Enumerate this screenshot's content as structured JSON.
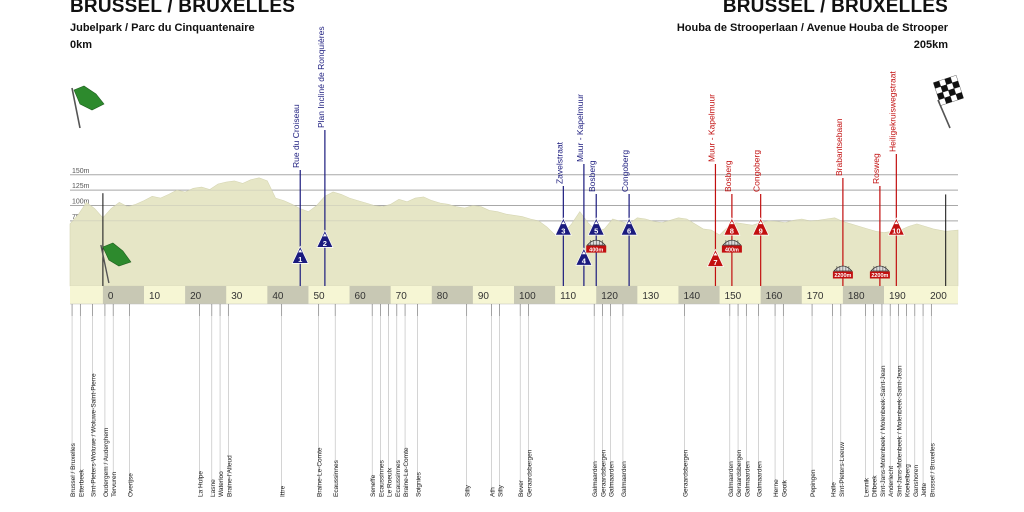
{
  "header": {
    "start_title": "BRUSSEL / BRUXELLES",
    "start_location": "Jubelpark / Parc du Cinquantenaire",
    "start_km": "0km",
    "finish_title": "BRUSSEL / BRUXELLES",
    "finish_location": "Houba de Strooperlaan / Avenue Houba de Strooper",
    "finish_km": "205km"
  },
  "colors": {
    "terrain": "#e6e6c6",
    "band_light": "#f6f6d4",
    "band_dark": "#c8c8b4",
    "climb_blue": "#1b1b7e",
    "climb_red": "#c20f0f",
    "grid": "#a8a8a8",
    "flag_green": "#2d8a2d"
  },
  "icons": {
    "start_flag": "green-flag-icon",
    "finish_flag": "checkered-flag-icon",
    "cobbles": "cobblestone-icon"
  },
  "chart_data": {
    "type": "area",
    "title": "",
    "xlabel": "",
    "ylabel": "",
    "xlim": [
      -8,
      208
    ],
    "ylim": [
      0,
      155
    ],
    "x_ticks": [
      0,
      10,
      20,
      30,
      40,
      50,
      60,
      70,
      80,
      90,
      100,
      110,
      120,
      130,
      140,
      150,
      160,
      170,
      180,
      190,
      200
    ],
    "x_tick_labels": [
      "0",
      "10",
      "20",
      "30",
      "40",
      "50",
      "60",
      "70",
      "80",
      "90",
      "100",
      "110",
      "120",
      "130",
      "140",
      "150",
      "160",
      "170",
      "180",
      "190",
      "200"
    ],
    "y_gridlines": [
      150,
      125,
      100,
      75
    ],
    "y_tick_labels": [
      "150m",
      "125m",
      "100m",
      "75m"
    ],
    "profile": {
      "x": [
        -8,
        -6,
        -4,
        -2,
        0,
        2,
        4,
        6,
        8,
        10,
        12,
        14,
        16,
        18,
        20,
        22,
        24,
        26,
        28,
        30,
        32,
        34,
        36,
        38,
        40,
        42,
        44,
        46,
        48,
        50,
        52,
        54,
        56,
        58,
        60,
        62,
        64,
        66,
        68,
        70,
        72,
        74,
        76,
        78,
        80,
        82,
        84,
        86,
        88,
        90,
        92,
        94,
        96,
        98,
        100,
        102,
        104,
        106,
        108,
        110,
        112,
        114,
        116,
        118,
        120,
        122,
        124,
        126,
        128,
        130,
        132,
        134,
        136,
        138,
        140,
        142,
        144,
        146,
        148,
        150,
        152,
        154,
        156,
        158,
        160,
        162,
        164,
        166,
        168,
        170,
        172,
        174,
        176,
        178,
        180,
        182,
        184,
        186,
        188,
        190,
        192,
        194,
        196,
        198,
        200,
        202,
        205,
        208
      ],
      "y": [
        70,
        85,
        105,
        95,
        80,
        95,
        105,
        98,
        102,
        108,
        115,
        112,
        118,
        125,
        122,
        128,
        130,
        126,
        135,
        138,
        140,
        136,
        142,
        145,
        140,
        112,
        108,
        102,
        95,
        90,
        100,
        115,
        122,
        118,
        112,
        108,
        104,
        100,
        98,
        102,
        110,
        106,
        112,
        114,
        108,
        104,
        102,
        98,
        96,
        100,
        98,
        92,
        90,
        86,
        84,
        82,
        78,
        75,
        65,
        52,
        55,
        70,
        90,
        72,
        58,
        62,
        78,
        74,
        70,
        80,
        78,
        74,
        72,
        76,
        80,
        78,
        70,
        62,
        60,
        52,
        65,
        72,
        70,
        68,
        72,
        75,
        74,
        72,
        76,
        78,
        75,
        76,
        78,
        80,
        74,
        70,
        66,
        62,
        58,
        56,
        58,
        60,
        66,
        70,
        66,
        62,
        58,
        60
      ]
    },
    "climbs": [
      {
        "num": "1",
        "name": "Rue du Croiseau",
        "km": 48,
        "color": "blue",
        "tri_alt": 14,
        "label_top": 74,
        "cobbles": ""
      },
      {
        "num": "2",
        "name": "Plan Incliné de Ronquières",
        "km": 54,
        "color": "blue",
        "tri_alt": 40,
        "label_top": 34,
        "cobbles": ""
      },
      {
        "num": "3",
        "name": "Zavelstraat",
        "km": 112,
        "color": "blue",
        "tri_alt": 60,
        "label_top": 90,
        "cobbles": ""
      },
      {
        "num": "4",
        "name": "Muur - Kapelmuur",
        "km": 117,
        "color": "blue",
        "tri_alt": 11,
        "label_top": 68,
        "cobbles": ""
      },
      {
        "num": "5",
        "name": "Bosberg",
        "km": 120,
        "color": "blue",
        "tri_alt": 60,
        "label_top": 98,
        "cobbles": "400m"
      },
      {
        "num": "6",
        "name": "Congoberg",
        "km": 128,
        "color": "blue",
        "tri_alt": 60,
        "label_top": 98,
        "cobbles": ""
      },
      {
        "num": "7",
        "name": "Muur - Kapelmuur",
        "km": 149,
        "color": "red",
        "tri_alt": 9,
        "label_top": 68,
        "cobbles": ""
      },
      {
        "num": "8",
        "name": "Bosberg",
        "km": 153,
        "color": "red",
        "tri_alt": 60,
        "label_top": 98,
        "cobbles": "400m"
      },
      {
        "num": "9",
        "name": "Congoberg",
        "km": 160,
        "color": "red",
        "tri_alt": 60,
        "label_top": 98,
        "cobbles": ""
      },
      {
        "num": "",
        "name": "Brabantsebaan",
        "km": 180,
        "color": "red",
        "tri_alt": 0,
        "label_top": 82,
        "cobbles": "2200m"
      },
      {
        "num": "",
        "name": "Rosweg",
        "km": 189,
        "color": "red",
        "tri_alt": 0,
        "label_top": 90,
        "cobbles": "2200m"
      },
      {
        "num": "10",
        "name": "Heiligekruiswegstraat",
        "km": 193,
        "color": "red",
        "tri_alt": 60,
        "label_top": 58,
        "cobbles": ""
      }
    ],
    "places": [
      {
        "name": "Brussel / Bruxelles",
        "km": -7.5
      },
      {
        "name": "Etterbeek",
        "km": -5.5
      },
      {
        "name": "Sint-Pieters-Woluwe / Woluwe-Saint-Pierre",
        "km": -2.5
      },
      {
        "name": "Oudergem / Auderghem",
        "km": 0.5
      },
      {
        "name": "Tervuren",
        "km": 2.5
      },
      {
        "name": "Overijse",
        "km": 6.5
      },
      {
        "name": "La Hulpe",
        "km": 23.5
      },
      {
        "name": "Lasne",
        "km": 26.5
      },
      {
        "name": "Waterloo",
        "km": 28.5
      },
      {
        "name": "Braine-l'Alleud",
        "km": 30.5
      },
      {
        "name": "Ittre",
        "km": 43.5
      },
      {
        "name": "Braine-Le-Comte",
        "km": 52.5
      },
      {
        "name": "Ecaussinnes",
        "km": 56.5
      },
      {
        "name": "Seneffe",
        "km": 65.5
      },
      {
        "name": "Ecaussinnes",
        "km": 67.5
      },
      {
        "name": "Le Roeulx",
        "km": 69.5
      },
      {
        "name": "Ecaussinnes",
        "km": 71.5
      },
      {
        "name": "Braine-Le-Comte",
        "km": 73.5
      },
      {
        "name": "Soignies",
        "km": 76.5
      },
      {
        "name": "Silly",
        "km": 88.5
      },
      {
        "name": "Ath",
        "km": 94.5
      },
      {
        "name": "Silly",
        "km": 96.5
      },
      {
        "name": "Bever",
        "km": 101.5
      },
      {
        "name": "Geraardsbergen",
        "km": 103.5
      },
      {
        "name": "Galmaarden",
        "km": 119.5
      },
      {
        "name": "Geraardsbergen",
        "km": 121.5
      },
      {
        "name": "Galmaarden",
        "km": 123.5
      },
      {
        "name": "Galmaarden",
        "km": 126.5
      },
      {
        "name": "Geraardsbergen",
        "km": 141.5
      },
      {
        "name": "Galmaarden",
        "km": 152.5
      },
      {
        "name": "Geraardsbergen",
        "km": 154.5
      },
      {
        "name": "Galmaarden",
        "km": 156.5
      },
      {
        "name": "Galmaarden",
        "km": 159.5
      },
      {
        "name": "Herne",
        "km": 163.5
      },
      {
        "name": "Gooik",
        "km": 165.5
      },
      {
        "name": "Pepingen",
        "km": 172.5
      },
      {
        "name": "Halle",
        "km": 177.5
      },
      {
        "name": "Sint-Pieters-Leeuw",
        "km": 179.5
      },
      {
        "name": "Lennik",
        "km": 185.5
      },
      {
        "name": "Dilbeek",
        "km": 187.5
      },
      {
        "name": "Sint-Jans-Molenbeek / Molenbeek-Saint-Jean",
        "km": 189.5
      },
      {
        "name": "Anderlecht",
        "km": 191.5
      },
      {
        "name": "Sint-Jans-Molenbeek / Molenbeek-Saint-Jean",
        "km": 193.5
      },
      {
        "name": "Koekelberg",
        "km": 195.5
      },
      {
        "name": "Ganshoren",
        "km": 197.5
      },
      {
        "name": "Jette",
        "km": 199.5
      },
      {
        "name": "Brussel / Bruxelles",
        "km": 201.5
      }
    ]
  }
}
